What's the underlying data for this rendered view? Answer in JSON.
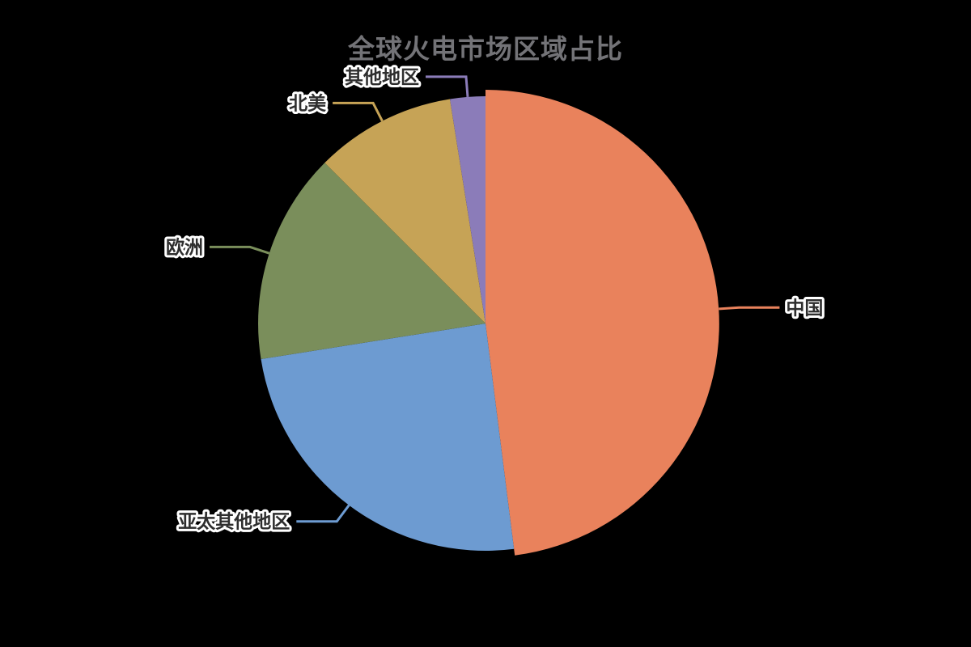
{
  "chart_data": {
    "type": "pie",
    "title": "全球火电市场区域占比",
    "unit": "%",
    "start_angle_deg": 90,
    "direction": "clockwise",
    "legend": "none",
    "labels_shown": true,
    "label_style": "dark text with white outline, colored leader lines",
    "background_color": "#000000",
    "title_color": "#737377",
    "emphasized_slice": "中国",
    "slices": [
      {
        "name": "中国",
        "value": 48,
        "color": "#E9825C"
      },
      {
        "name": "亚太其他地区",
        "value": 24.5,
        "color": "#6D9BD1"
      },
      {
        "name": "欧洲",
        "value": 15,
        "color": "#7A8E5B"
      },
      {
        "name": "北美",
        "value": 10,
        "color": "#C6A356"
      },
      {
        "name": "其他地区",
        "value": 2.5,
        "color": "#8B7CB9"
      }
    ]
  }
}
